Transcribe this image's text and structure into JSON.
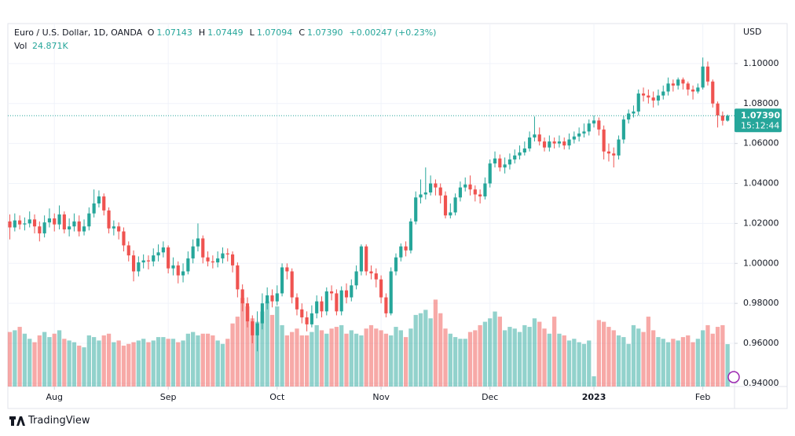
{
  "chart_data": {
    "type": "candlestick",
    "title": "Euro / U.S. Dollar, 1D, OANDA",
    "ohlc_legend": [
      {
        "key": "O",
        "text": "1.07143"
      },
      {
        "key": "H",
        "text": "1.07449"
      },
      {
        "key": "L",
        "text": "1.07094"
      },
      {
        "key": "C",
        "text": "1.07390"
      }
    ],
    "change": "+0.00247 (+0.23%)",
    "volume_legend": {
      "key": "Vol",
      "text": "24.871K"
    },
    "currency": "USD",
    "last_price": "1.07390",
    "countdown": "15:12:44",
    "up_color": "#26a69a",
    "down_color": "#ef5350",
    "open": [
      1.021,
      1.018,
      1.0215,
      1.0195,
      1.02,
      1.022,
      1.0185,
      1.015,
      1.0205,
      1.0225,
      1.0195,
      1.0245,
      1.017,
      1.0185,
      1.021,
      1.016,
      1.0185,
      1.025,
      1.03,
      1.0335,
      1.0265,
      1.0175,
      1.0185,
      1.016,
      1.009,
      1.004,
      0.996,
      1.0005,
      1.0015,
      1.001,
      1.004,
      1.0055,
      1.008,
      0.9975,
      0.999,
      0.994,
      0.996,
      1.0025,
      1.0085,
      1.0125,
      1.003,
      1.001,
      1.0005,
      1.0025,
      1.005,
      1.0045,
      0.999,
      0.987,
      0.98,
      0.971,
      0.964,
      0.97,
      0.98,
      0.984,
      0.981,
      0.985,
      0.998,
      0.996,
      0.983,
      0.977,
      0.973,
      0.9695,
      0.975,
      0.981,
      0.976,
      0.986,
      0.985,
      0.976,
      0.9865,
      0.983,
      0.989,
      0.996,
      1.0085,
      0.996,
      0.995,
      0.992,
      0.983,
      0.975,
      0.996,
      1.003,
      1.0085,
      1.0065,
      1.021,
      1.033,
      1.0345,
      1.0355,
      1.04,
      1.038,
      1.034,
      1.024,
      1.0255,
      1.033,
      1.038,
      1.0395,
      1.037,
      1.0345,
      1.0335,
      1.04,
      1.05,
      1.0525,
      1.048,
      1.0495,
      1.052,
      1.054,
      1.0555,
      1.0575,
      1.063,
      1.0645,
      1.061,
      1.058,
      1.061,
      1.06,
      1.061,
      1.059,
      1.062,
      1.0635,
      1.065,
      1.066,
      1.07,
      1.0715,
      1.067,
      1.056,
      1.055,
      1.054,
      1.062,
      1.072,
      1.075,
      1.076,
      1.085,
      1.084,
      1.083,
      1.0815,
      1.084,
      1.086,
      1.09,
      1.089,
      1.092,
      1.09,
      1.087,
      1.086,
      1.088,
      1.0985,
      1.091,
      1.08,
      1.074,
      1.07143
    ],
    "high": [
      1.0245,
      1.025,
      1.024,
      1.023,
      1.026,
      1.0245,
      1.021,
      1.024,
      1.0275,
      1.025,
      1.029,
      1.026,
      1.0225,
      1.025,
      1.024,
      1.022,
      1.028,
      1.037,
      1.0365,
      1.035,
      1.028,
      1.0215,
      1.0205,
      1.018,
      1.011,
      1.0065,
      1.0035,
      1.0045,
      1.004,
      1.0075,
      1.0095,
      1.011,
      1.009,
      1.003,
      1.001,
      1.0,
      1.006,
      1.012,
      1.02,
      1.014,
      1.006,
      1.004,
      1.006,
      1.008,
      1.0075,
      1.006,
      1.0005,
      0.9895,
      0.983,
      0.974,
      0.976,
      0.985,
      0.988,
      0.987,
      0.989,
      1.0,
      1.0,
      0.9975,
      0.985,
      0.98,
      0.976,
      0.979,
      0.984,
      0.9835,
      0.988,
      0.989,
      0.987,
      0.9885,
      0.99,
      0.992,
      0.999,
      1.0095,
      1.0095,
      0.999,
      0.9975,
      0.994,
      0.985,
      0.998,
      1.005,
      1.01,
      1.011,
      1.0225,
      1.036,
      1.042,
      1.048,
      1.044,
      1.042,
      1.04,
      1.036,
      1.03,
      1.035,
      1.041,
      1.043,
      1.044,
      1.039,
      1.037,
      1.043,
      1.052,
      1.056,
      1.0545,
      1.053,
      1.055,
      1.057,
      1.059,
      1.061,
      1.066,
      1.0735,
      1.068,
      1.063,
      1.064,
      1.063,
      1.064,
      1.063,
      1.065,
      1.066,
      1.068,
      1.07,
      1.072,
      1.074,
      1.073,
      1.069,
      1.06,
      1.058,
      1.064,
      1.074,
      1.077,
      1.079,
      1.087,
      1.088,
      1.087,
      1.086,
      1.087,
      1.089,
      1.093,
      1.092,
      1.093,
      1.093,
      1.091,
      1.089,
      1.09,
      1.103,
      1.101,
      1.092,
      1.081,
      1.076,
      1.07449
    ],
    "low": [
      1.012,
      1.016,
      1.017,
      1.0165,
      1.018,
      1.015,
      1.011,
      1.013,
      1.018,
      1.016,
      1.017,
      1.015,
      1.0135,
      1.016,
      1.0135,
      1.014,
      1.0165,
      1.023,
      1.028,
      1.024,
      1.015,
      1.014,
      1.012,
      1.006,
      1.001,
      0.991,
      0.9935,
      0.9975,
      0.997,
      0.9985,
      1.001,
      1.003,
      0.995,
      0.994,
      0.99,
      0.9905,
      0.9945,
      1.0,
      1.006,
      1.0,
      0.9985,
      0.9975,
      0.998,
      1.0,
      1.001,
      0.9955,
      0.983,
      0.976,
      0.968,
      0.96,
      0.956,
      0.967,
      0.977,
      0.978,
      0.979,
      0.9835,
      0.992,
      0.98,
      0.974,
      0.97,
      0.966,
      0.968,
      0.9725,
      0.973,
      0.974,
      0.9815,
      0.974,
      0.974,
      0.98,
      0.981,
      0.987,
      0.994,
      0.994,
      0.992,
      0.988,
      0.98,
      0.973,
      0.974,
      0.994,
      1.001,
      1.0035,
      1.005,
      1.0195,
      1.03,
      1.032,
      1.034,
      1.034,
      1.03,
      1.0225,
      1.0225,
      1.024,
      1.031,
      1.036,
      1.034,
      1.031,
      1.03,
      1.032,
      1.038,
      1.048,
      1.046,
      1.045,
      1.047,
      1.05,
      1.052,
      1.054,
      1.056,
      1.061,
      1.059,
      1.056,
      1.056,
      1.0575,
      1.058,
      1.057,
      1.057,
      1.06,
      1.061,
      1.063,
      1.064,
      1.068,
      1.064,
      1.052,
      1.051,
      1.048,
      1.052,
      1.06,
      1.07,
      1.073,
      1.074,
      1.081,
      1.08,
      1.078,
      1.079,
      1.082,
      1.084,
      1.086,
      1.087,
      1.087,
      1.084,
      1.082,
      1.085,
      1.087,
      1.089,
      1.078,
      1.068,
      1.069,
      1.07094
    ],
    "close": [
      1.018,
      1.0215,
      1.0195,
      1.02,
      1.022,
      1.0185,
      1.015,
      1.0205,
      1.0225,
      1.0195,
      1.0245,
      1.017,
      1.0185,
      1.021,
      1.016,
      1.0185,
      1.025,
      1.03,
      1.0335,
      1.0265,
      1.0175,
      1.0185,
      1.016,
      1.009,
      1.004,
      0.996,
      1.0005,
      1.0015,
      1.001,
      1.004,
      1.0055,
      1.008,
      0.9975,
      0.999,
      0.994,
      0.996,
      1.0025,
      1.0085,
      1.0125,
      1.003,
      1.001,
      1.0005,
      1.0025,
      1.005,
      1.0045,
      0.999,
      0.987,
      0.98,
      0.971,
      0.964,
      0.97,
      0.98,
      0.984,
      0.981,
      0.985,
      0.998,
      0.996,
      0.983,
      0.977,
      0.973,
      0.9695,
      0.975,
      0.981,
      0.976,
      0.986,
      0.985,
      0.976,
      0.9865,
      0.983,
      0.989,
      0.996,
      1.0085,
      0.996,
      0.995,
      0.992,
      0.983,
      0.975,
      0.996,
      1.003,
      1.0085,
      1.0065,
      1.021,
      1.033,
      1.0345,
      1.0355,
      1.04,
      1.038,
      1.034,
      1.024,
      1.0255,
      1.033,
      1.038,
      1.0395,
      1.037,
      1.0345,
      1.0335,
      1.04,
      1.05,
      1.0525,
      1.048,
      1.0495,
      1.052,
      1.054,
      1.0555,
      1.0575,
      1.063,
      1.0645,
      1.061,
      1.058,
      1.061,
      1.06,
      1.061,
      1.059,
      1.062,
      1.0635,
      1.065,
      1.066,
      1.07,
      1.0715,
      1.067,
      1.056,
      1.055,
      1.054,
      1.062,
      1.072,
      1.075,
      1.076,
      1.085,
      1.084,
      1.083,
      1.0815,
      1.084,
      1.086,
      1.09,
      1.089,
      1.092,
      1.09,
      1.087,
      1.086,
      1.088,
      1.0985,
      1.091,
      1.08,
      1.074,
      1.0714,
      1.0739
    ],
    "volume": [
      32000,
      33000,
      35000,
      31000,
      28000,
      26000,
      30000,
      32000,
      29000,
      31000,
      33000,
      28000,
      27000,
      26000,
      24000,
      23000,
      30000,
      29000,
      27000,
      30000,
      31000,
      26000,
      27000,
      24000,
      25000,
      26000,
      27000,
      28000,
      26000,
      27000,
      29000,
      29000,
      28000,
      28000,
      26000,
      27000,
      31000,
      32000,
      30000,
      31000,
      31000,
      30000,
      27000,
      25000,
      28000,
      37000,
      41000,
      52000,
      47000,
      40000,
      38000,
      44000,
      50000,
      42000,
      47000,
      36000,
      30000,
      32000,
      34000,
      30000,
      30000,
      32000,
      36000,
      33000,
      31000,
      34000,
      35000,
      36000,
      31000,
      33000,
      31000,
      30000,
      34000,
      36000,
      34000,
      33000,
      31000,
      30000,
      35000,
      33000,
      29000,
      34000,
      42000,
      43000,
      45000,
      40000,
      51000,
      43000,
      34000,
      31000,
      29000,
      28000,
      28000,
      32000,
      33000,
      36000,
      38000,
      40000,
      44000,
      41000,
      33000,
      35000,
      34000,
      32000,
      36000,
      35000,
      40000,
      38000,
      34000,
      31000,
      41000,
      31000,
      30000,
      27000,
      28000,
      26000,
      25000,
      27000,
      6000,
      39000,
      38000,
      35000,
      33000,
      30000,
      29000,
      25000,
      36000,
      34000,
      32000,
      41000,
      33000,
      29000,
      28000,
      26000,
      28000,
      27000,
      29000,
      30000,
      26000,
      28000,
      33000,
      36000,
      31000,
      35000,
      36000,
      24871
    ],
    "xlim": [
      -0.4,
      146.4
    ],
    "xticks": [
      {
        "value": 9,
        "label": "Aug"
      },
      {
        "value": 32,
        "label": "Sep"
      },
      {
        "value": 54,
        "label": "Oct"
      },
      {
        "value": 75,
        "label": "Nov"
      },
      {
        "value": 97,
        "label": "Dec"
      },
      {
        "value": 118,
        "label": "2023"
      },
      {
        "value": 140,
        "label": "Feb"
      }
    ],
    "ylim": [
      0.9384,
      1.12
    ],
    "yticks": [
      {
        "value": 0.94,
        "label": "0.94000"
      },
      {
        "value": 0.96,
        "label": "0.96000"
      },
      {
        "value": 0.98,
        "label": "0.98000"
      },
      {
        "value": 1.0,
        "label": "1.00000"
      },
      {
        "value": 1.02,
        "label": "1.02000"
      },
      {
        "value": 1.04,
        "label": "1.04000"
      },
      {
        "value": 1.06,
        "label": "1.06000"
      },
      {
        "value": 1.08,
        "label": "1.08000"
      },
      {
        "value": 1.1,
        "label": "1.10000"
      }
    ],
    "y2lim": [
      0,
      213000
    ],
    "grid": true
  },
  "footer": "TradingView"
}
